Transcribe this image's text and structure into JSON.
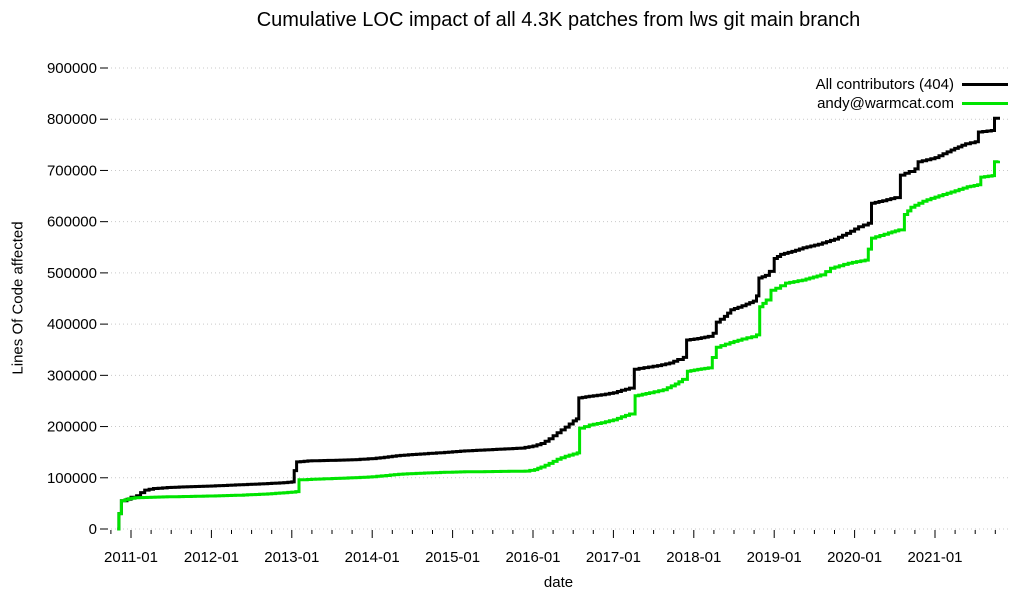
{
  "chart_data": {
    "type": "line",
    "title": "Cumulative LOC impact of all 4.3K patches from lws git main branch",
    "xlabel": "date",
    "ylabel": "Lines Of Code affected",
    "grid": "dotted-horizontal",
    "legend_position": "top-right-inside",
    "background_color": "#ffffff",
    "grid_color": "#c9c9c9",
    "tick_color": "#000000",
    "text_color": "#000000",
    "x_axis": {
      "tick_labels": [
        "2011-01",
        "2012-01",
        "2013-01",
        "2014-01",
        "2015-01",
        "2016-01",
        "2017-01",
        "2018-01",
        "2019-01",
        "2020-01",
        "2021-01"
      ],
      "tick_values": [
        2011,
        2012,
        2013,
        2014,
        2015,
        2016,
        2017,
        2018,
        2019,
        2020,
        2021
      ],
      "minor_tick_step_years": 0.25,
      "range_years": [
        2010.7,
        2021.93
      ]
    },
    "y_axis": {
      "tick_labels": [
        "0",
        "100000",
        "200000",
        "300000",
        "400000",
        "500000",
        "600000",
        "700000",
        "800000",
        "900000"
      ],
      "tick_values": [
        0,
        100000,
        200000,
        300000,
        400000,
        500000,
        600000,
        700000,
        800000,
        900000
      ],
      "range": [
        0,
        900000
      ]
    },
    "series": [
      {
        "name": "All contributors (404)",
        "color": "#000000",
        "points": [
          [
            2010.83,
            0
          ],
          [
            2010.85,
            30000
          ],
          [
            2010.88,
            55000
          ],
          [
            2010.95,
            58000
          ],
          [
            2011.0,
            62000
          ],
          [
            2011.07,
            65000
          ],
          [
            2011.12,
            71000
          ],
          [
            2011.17,
            76000
          ],
          [
            2011.28,
            79000
          ],
          [
            2011.45,
            81000
          ],
          [
            2011.7,
            82500
          ],
          [
            2012.0,
            84000
          ],
          [
            2012.3,
            86000
          ],
          [
            2012.6,
            88000
          ],
          [
            2012.85,
            90000
          ],
          [
            2013.0,
            92000
          ],
          [
            2013.03,
            114000
          ],
          [
            2013.06,
            131000
          ],
          [
            2013.2,
            133000
          ],
          [
            2013.5,
            134000
          ],
          [
            2013.8,
            135500
          ],
          [
            2014.0,
            137500
          ],
          [
            2014.15,
            140000
          ],
          [
            2014.3,
            143000
          ],
          [
            2014.5,
            145500
          ],
          [
            2014.7,
            147500
          ],
          [
            2014.9,
            149500
          ],
          [
            2015.1,
            152000
          ],
          [
            2015.35,
            154000
          ],
          [
            2015.6,
            156000
          ],
          [
            2015.85,
            158000
          ],
          [
            2016.0,
            162000
          ],
          [
            2016.1,
            167000
          ],
          [
            2016.2,
            176000
          ],
          [
            2016.3,
            188000
          ],
          [
            2016.4,
            199000
          ],
          [
            2016.5,
            211000
          ],
          [
            2016.54,
            215000
          ],
          [
            2016.57,
            256000
          ],
          [
            2016.7,
            259000
          ],
          [
            2016.85,
            262000
          ],
          [
            2017.0,
            266000
          ],
          [
            2017.1,
            271000
          ],
          [
            2017.2,
            275000
          ],
          [
            2017.26,
            312000
          ],
          [
            2017.38,
            315000
          ],
          [
            2017.55,
            319000
          ],
          [
            2017.7,
            324000
          ],
          [
            2017.8,
            331000
          ],
          [
            2017.87,
            335000
          ],
          [
            2017.91,
            369000
          ],
          [
            2018.05,
            372000
          ],
          [
            2018.18,
            376000
          ],
          [
            2018.24,
            382000
          ],
          [
            2018.28,
            404000
          ],
          [
            2018.38,
            415000
          ],
          [
            2018.46,
            428000
          ],
          [
            2018.55,
            433000
          ],
          [
            2018.65,
            439000
          ],
          [
            2018.74,
            445000
          ],
          [
            2018.78,
            455000
          ],
          [
            2018.81,
            490000
          ],
          [
            2018.89,
            495000
          ],
          [
            2018.94,
            503000
          ],
          [
            2019.0,
            528000
          ],
          [
            2019.08,
            536000
          ],
          [
            2019.22,
            542000
          ],
          [
            2019.36,
            549000
          ],
          [
            2019.55,
            556000
          ],
          [
            2019.75,
            566000
          ],
          [
            2019.9,
            577000
          ],
          [
            2020.05,
            590000
          ],
          [
            2020.17,
            597000
          ],
          [
            2020.21,
            636000
          ],
          [
            2020.35,
            641000
          ],
          [
            2020.5,
            647000
          ],
          [
            2020.57,
            691000
          ],
          [
            2020.68,
            698000
          ],
          [
            2020.75,
            703000
          ],
          [
            2020.79,
            717000
          ],
          [
            2021.0,
            725000
          ],
          [
            2021.2,
            740000
          ],
          [
            2021.38,
            752000
          ],
          [
            2021.5,
            756000
          ],
          [
            2021.54,
            775000
          ],
          [
            2021.7,
            778000
          ],
          [
            2021.74,
            802000
          ],
          [
            2021.79,
            805000
          ]
        ]
      },
      {
        "name": "andy@warmcat.com",
        "color": "#00e400",
        "points": [
          [
            2010.83,
            0
          ],
          [
            2010.85,
            30000
          ],
          [
            2010.88,
            55000
          ],
          [
            2010.97,
            59000
          ],
          [
            2011.05,
            61000
          ],
          [
            2011.35,
            62500
          ],
          [
            2011.7,
            63500
          ],
          [
            2012.0,
            64500
          ],
          [
            2012.35,
            66000
          ],
          [
            2012.7,
            68500
          ],
          [
            2013.0,
            72000
          ],
          [
            2013.05,
            73000
          ],
          [
            2013.09,
            96000
          ],
          [
            2013.4,
            98000
          ],
          [
            2013.75,
            100000
          ],
          [
            2014.0,
            102000
          ],
          [
            2014.17,
            104500
          ],
          [
            2014.33,
            107000
          ],
          [
            2014.6,
            109000
          ],
          [
            2014.85,
            110500
          ],
          [
            2015.1,
            111500
          ],
          [
            2015.5,
            112200
          ],
          [
            2015.9,
            113000
          ],
          [
            2016.02,
            116000
          ],
          [
            2016.1,
            121000
          ],
          [
            2016.2,
            128000
          ],
          [
            2016.3,
            136000
          ],
          [
            2016.4,
            142000
          ],
          [
            2016.5,
            146500
          ],
          [
            2016.55,
            148500
          ],
          [
            2016.58,
            197000
          ],
          [
            2016.7,
            203000
          ],
          [
            2016.85,
            207500
          ],
          [
            2017.0,
            213000
          ],
          [
            2017.1,
            219000
          ],
          [
            2017.2,
            224500
          ],
          [
            2017.27,
            260000
          ],
          [
            2017.45,
            266000
          ],
          [
            2017.62,
            272000
          ],
          [
            2017.77,
            283000
          ],
          [
            2017.86,
            292000
          ],
          [
            2017.92,
            308000
          ],
          [
            2018.05,
            311500
          ],
          [
            2018.18,
            314500
          ],
          [
            2018.28,
            355000
          ],
          [
            2018.45,
            364000
          ],
          [
            2018.6,
            371000
          ],
          [
            2018.72,
            375500
          ],
          [
            2018.78,
            379000
          ],
          [
            2018.82,
            434000
          ],
          [
            2018.9,
            447000
          ],
          [
            2018.96,
            466000
          ],
          [
            2019.02,
            470000
          ],
          [
            2019.14,
            480000
          ],
          [
            2019.35,
            486000
          ],
          [
            2019.58,
            496000
          ],
          [
            2019.7,
            509000
          ],
          [
            2019.92,
            519000
          ],
          [
            2020.13,
            525000
          ],
          [
            2020.21,
            568000
          ],
          [
            2020.42,
            578000
          ],
          [
            2020.55,
            584000
          ],
          [
            2020.62,
            614000
          ],
          [
            2020.7,
            628000
          ],
          [
            2020.85,
            640000
          ],
          [
            2021.0,
            648000
          ],
          [
            2021.2,
            658000
          ],
          [
            2021.4,
            668000
          ],
          [
            2021.53,
            672000
          ],
          [
            2021.57,
            687000
          ],
          [
            2021.71,
            690000
          ],
          [
            2021.74,
            717000
          ],
          [
            2021.79,
            719000
          ]
        ]
      }
    ]
  }
}
